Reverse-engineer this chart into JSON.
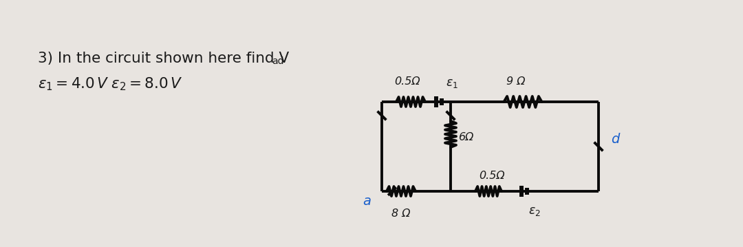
{
  "bg_color": "#e8e4e0",
  "text_color": "#1a1a1a",
  "circuit_color": "#0a0a0a",
  "blue_color": "#1a5fcc",
  "fig_width": 10.8,
  "fig_height": 3.59,
  "dpi": 100,
  "text1": "3) In the circuit shown here find V",
  "text1_sub": "ad",
  "text2_eps1": "ε",
  "text2_line2": "ε1 = 4.0 V ε2 = 8.0 V"
}
